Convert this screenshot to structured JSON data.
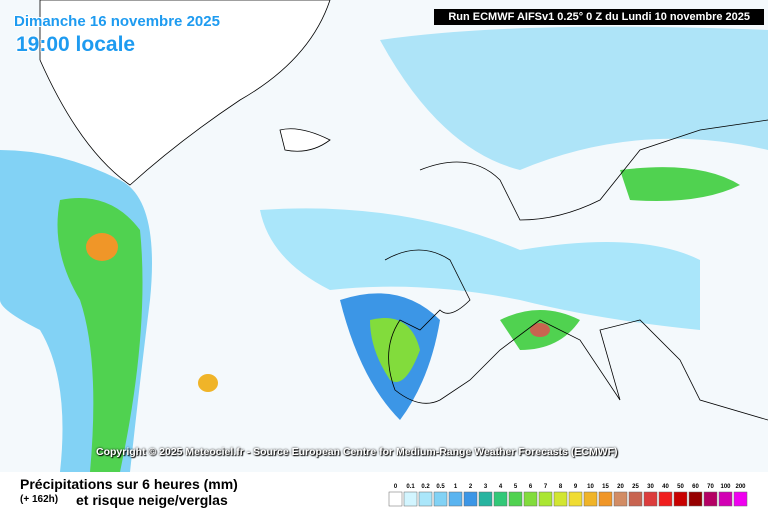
{
  "header": {
    "date": "Dimanche 16 novembre 2025",
    "time": "19:00 locale",
    "run": "Run ECMWF AIFSv1 0.25° 0 Z du Lundi 10 novembre 2025"
  },
  "copyright": "Copyright © 2025 Meteociel.fr - Source European Centre for Medium-Range Weather Forecasts (ECMWF)",
  "legend": {
    "title": "Précipitations sur 6 heures (mm)",
    "lead": "(+ 162h)",
    "subtitle": "et risque neige/verglas",
    "scale": [
      {
        "value": 0,
        "color": "#ffffff"
      },
      {
        "value": 0.1,
        "color": "#d2f5ff"
      },
      {
        "value": 0.2,
        "color": "#aae6fa"
      },
      {
        "value": 0.5,
        "color": "#82d2f5"
      },
      {
        "value": 1,
        "color": "#5ab4f0"
      },
      {
        "value": 2,
        "color": "#3c96e6"
      },
      {
        "value": 3,
        "color": "#28b4a0"
      },
      {
        "value": 4,
        "color": "#32c878"
      },
      {
        "value": 5,
        "color": "#50d250"
      },
      {
        "value": 6,
        "color": "#82dc3c"
      },
      {
        "value": 7,
        "color": "#aae632"
      },
      {
        "value": 8,
        "color": "#d2e632"
      },
      {
        "value": 9,
        "color": "#f0dc32"
      },
      {
        "value": 10,
        "color": "#f0b428"
      },
      {
        "value": 15,
        "color": "#f09628"
      },
      {
        "value": 20,
        "color": "#d28c64"
      },
      {
        "value": 25,
        "color": "#c86450"
      },
      {
        "value": 30,
        "color": "#dc3c3c"
      },
      {
        "value": 40,
        "color": "#f01e1e"
      },
      {
        "value": 50,
        "color": "#c80000"
      },
      {
        "value": 60,
        "color": "#960000"
      },
      {
        "value": 70,
        "color": "#b40064"
      },
      {
        "value": 100,
        "color": "#d200b4"
      },
      {
        "value": 200,
        "color": "#f000f0"
      }
    ]
  }
}
